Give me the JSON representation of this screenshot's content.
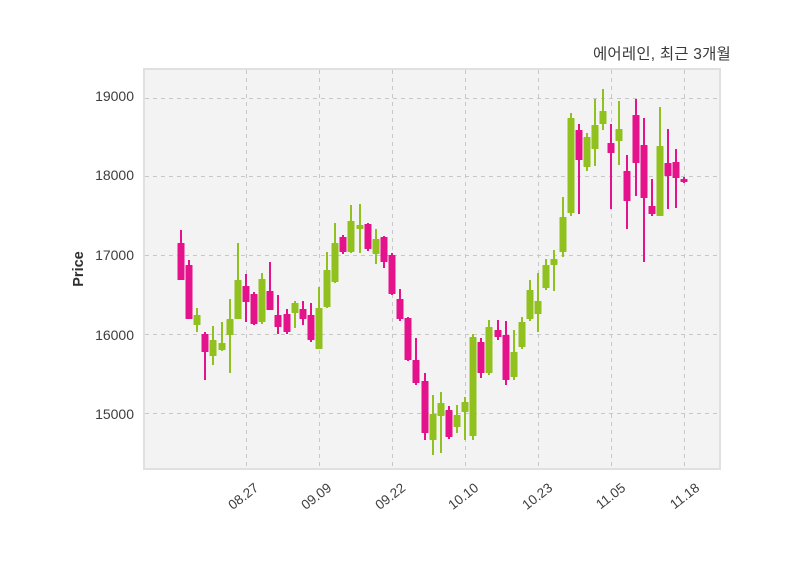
{
  "chart_data": {
    "type": "candlestick",
    "title": "에어레인, 최근 3개월",
    "ylabel": "Price",
    "xlabel": "",
    "ylim": [
      14300,
      19350
    ],
    "yticks": [
      15000,
      16000,
      17000,
      18000,
      19000
    ],
    "xticks": [
      {
        "index": 8,
        "label": "08.27"
      },
      {
        "index": 17,
        "label": "09.09"
      },
      {
        "index": 26,
        "label": "09.22"
      },
      {
        "index": 35,
        "label": "10.10"
      },
      {
        "index": 44,
        "label": "10.23"
      },
      {
        "index": 53,
        "label": "11.05"
      },
      {
        "index": 62,
        "label": "11.18"
      }
    ],
    "grid": "dashed-both-axes",
    "legend_position": "none",
    "up_color": "#90C11E",
    "down_color": "#E4138C",
    "columns": [
      "open",
      "high",
      "low",
      "close"
    ],
    "candles": [
      [
        17160,
        17315,
        16680,
        16685
      ],
      [
        16880,
        16945,
        16185,
        16190
      ],
      [
        16120,
        16335,
        16020,
        16235
      ],
      [
        16000,
        16030,
        15415,
        15775
      ],
      [
        15725,
        16105,
        15610,
        15925
      ],
      [
        15795,
        16150,
        15785,
        15880
      ],
      [
        15985,
        16445,
        15500,
        16195
      ],
      [
        16195,
        17160,
        16190,
        16680
      ],
      [
        16605,
        16765,
        16155,
        16405
      ],
      [
        16510,
        16530,
        16110,
        16130
      ],
      [
        16155,
        16775,
        16130,
        16700
      ],
      [
        16540,
        16920,
        16300,
        16310
      ],
      [
        16235,
        16490,
        15995,
        16090
      ],
      [
        16260,
        16320,
        16005,
        16025
      ],
      [
        16270,
        16425,
        16070,
        16395
      ],
      [
        16320,
        16415,
        16110,
        16195
      ],
      [
        16235,
        16395,
        15900,
        15920
      ],
      [
        15815,
        16595,
        15805,
        16330
      ],
      [
        16340,
        17045,
        16330,
        16815
      ],
      [
        16655,
        17405,
        16645,
        17155
      ],
      [
        17225,
        17255,
        17015,
        17035
      ],
      [
        17035,
        17635,
        17030,
        17435
      ],
      [
        17330,
        17645,
        17030,
        17380
      ],
      [
        17395,
        17410,
        17055,
        17080
      ],
      [
        17015,
        17330,
        16890,
        17205
      ],
      [
        17225,
        17245,
        16835,
        16910
      ],
      [
        17005,
        17030,
        16490,
        16510
      ],
      [
        16445,
        16565,
        16170,
        16195
      ],
      [
        16205,
        16215,
        15655,
        15670
      ],
      [
        15670,
        15950,
        15355,
        15375
      ],
      [
        15400,
        15500,
        14650,
        14750
      ],
      [
        14660,
        15230,
        14460,
        14985
      ],
      [
        14955,
        15270,
        14490,
        15130
      ],
      [
        15040,
        15090,
        14665,
        14690
      ],
      [
        14825,
        15100,
        14740,
        14970
      ],
      [
        15015,
        15205,
        14655,
        15140
      ],
      [
        14700,
        16000,
        14660,
        15965
      ],
      [
        15900,
        15945,
        15440,
        15500
      ],
      [
        15500,
        16180,
        15480,
        16090
      ],
      [
        16055,
        16180,
        15920,
        15965
      ],
      [
        15985,
        16170,
        15355,
        15415
      ],
      [
        15460,
        16050,
        15415,
        15775
      ],
      [
        15840,
        16215,
        15815,
        16155
      ],
      [
        16195,
        16680,
        16170,
        16555
      ],
      [
        16260,
        16770,
        16030,
        16425
      ],
      [
        16590,
        16950,
        16560,
        16880
      ],
      [
        16870,
        17060,
        16550,
        16950
      ],
      [
        17035,
        17740,
        16980,
        17480
      ],
      [
        17540,
        18810,
        17500,
        18740
      ],
      [
        18585,
        18670,
        17520,
        18205
      ],
      [
        18115,
        18545,
        18070,
        18495
      ],
      [
        18350,
        18980,
        18130,
        18655
      ],
      [
        18660,
        19105,
        18590,
        18825
      ],
      [
        18430,
        18670,
        17580,
        18300
      ],
      [
        18445,
        18960,
        18140,
        18600
      ],
      [
        18065,
        18275,
        17330,
        17690
      ],
      [
        18780,
        18980,
        17750,
        18170
      ],
      [
        18400,
        18740,
        16910,
        17730
      ],
      [
        17625,
        17970,
        17500,
        17520
      ],
      [
        17500,
        18880,
        17495,
        18380
      ],
      [
        18170,
        18600,
        17590,
        18005
      ],
      [
        18180,
        18350,
        17600,
        17985
      ],
      [
        17970,
        17990,
        17920,
        17930
      ]
    ]
  }
}
